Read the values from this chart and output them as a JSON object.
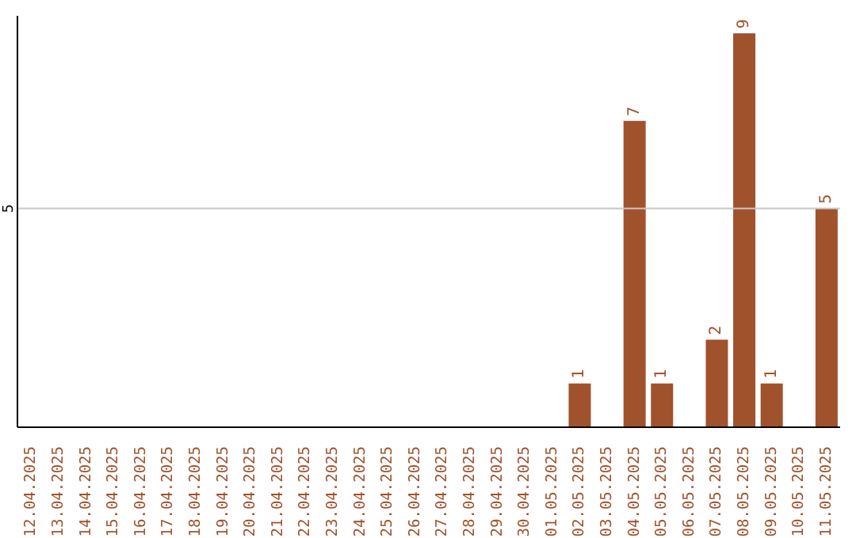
{
  "chart_data": {
    "type": "bar",
    "categories": [
      "12.04.2025",
      "13.04.2025",
      "14.04.2025",
      "15.04.2025",
      "16.04.2025",
      "17.04.2025",
      "18.04.2025",
      "19.04.2025",
      "20.04.2025",
      "21.04.2025",
      "22.04.2025",
      "23.04.2025",
      "24.04.2025",
      "25.04.2025",
      "26.04.2025",
      "27.04.2025",
      "28.04.2025",
      "29.04.2025",
      "30.04.2025",
      "01.05.2025",
      "02.05.2025",
      "03.05.2025",
      "04.05.2025",
      "05.05.2025",
      "06.05.2025",
      "07.05.2025",
      "08.05.2025",
      "09.05.2025",
      "10.05.2025",
      "11.05.2025"
    ],
    "values": [
      null,
      null,
      null,
      null,
      null,
      null,
      null,
      null,
      null,
      null,
      null,
      null,
      null,
      null,
      null,
      null,
      null,
      null,
      null,
      null,
      1,
      null,
      7,
      1,
      null,
      2,
      9,
      1,
      null,
      5
    ],
    "data_labels": true,
    "color": "#a0522d",
    "ylim": [
      0,
      9.4
    ],
    "yticks": [
      5
    ],
    "grid": "y"
  }
}
